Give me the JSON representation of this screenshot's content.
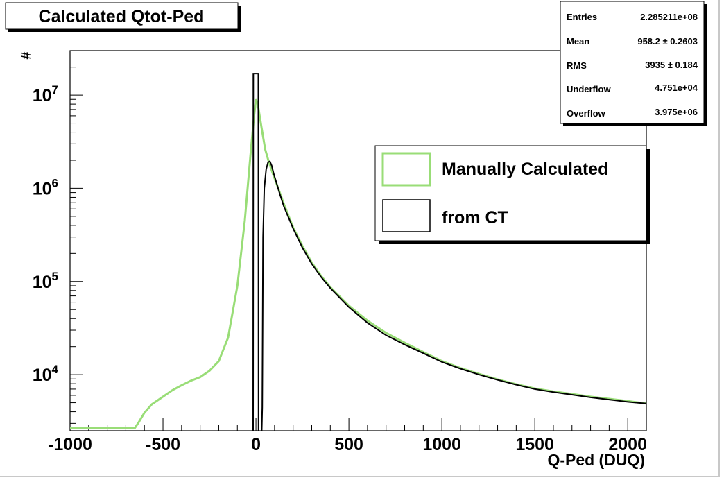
{
  "chart_data": {
    "type": "line",
    "title": "Calculated Qtot-Ped",
    "xlabel": "Q-Ped (DUQ)",
    "ylabel": "#",
    "xlim": [
      -1000,
      2100
    ],
    "ylim": [
      2500,
      30000000
    ],
    "y_scale": "log",
    "grid": false,
    "x_ticks": [
      -1000,
      -500,
      0,
      500,
      1000,
      1500,
      2000
    ],
    "x_tick_labels": [
      "-1000",
      "-500",
      "0",
      "500",
      "1000",
      "1500",
      "2000"
    ],
    "y_ticks": [
      10000,
      100000,
      1000000,
      10000000
    ],
    "y_tick_labels": [
      {
        "base": "10",
        "exp": "4"
      },
      {
        "base": "10",
        "exp": "5"
      },
      {
        "base": "10",
        "exp": "6"
      },
      {
        "base": "10",
        "exp": "7"
      }
    ],
    "legend": {
      "position": "top-right",
      "entries": [
        "Manually Calculated",
        "from CT"
      ]
    },
    "stats_box": {
      "position": "top-right",
      "rows": [
        {
          "label": "Entries",
          "value": "2.285211e+08"
        },
        {
          "label": "Mean",
          "value": "958.2 ± 0.2603"
        },
        {
          "label": "RMS",
          "value": "3935 ± 0.184"
        },
        {
          "label": "Underflow",
          "value": "4.751e+04"
        },
        {
          "label": "Overflow",
          "value": "3.975e+06"
        }
      ]
    },
    "series": [
      {
        "name": "Manually Calculated",
        "color": "#99dd77",
        "x": [
          -1000,
          -650,
          -630,
          -600,
          -560,
          -500,
          -450,
          -400,
          -350,
          -300,
          -250,
          -200,
          -150,
          -100,
          -60,
          -30,
          -10,
          0,
          10,
          30,
          50,
          70,
          90,
          120,
          150,
          200,
          250,
          300,
          350,
          400,
          500,
          600,
          700,
          800,
          900,
          1000,
          1100,
          1200,
          1300,
          1400,
          1500,
          1600,
          1700,
          1800,
          1900,
          2000,
          2100
        ],
        "y": [
          2700,
          2700,
          3100,
          3900,
          4800,
          5800,
          6800,
          7700,
          8600,
          9400,
          11000,
          14000,
          25000,
          90000,
          450000,
          2200000,
          6000000,
          9000000,
          8000000,
          4500000,
          2600000,
          1900000,
          1450000,
          1000000,
          680000,
          380000,
          240000,
          160000,
          115000,
          87000,
          55000,
          38000,
          28000,
          22000,
          17500,
          14000,
          11800,
          10200,
          8900,
          7900,
          7100,
          6600,
          6200,
          5800,
          5500,
          5200,
          4900
        ]
      },
      {
        "name": "from CT",
        "color": "#000000",
        "x": [
          -1000,
          -15,
          -14,
          0,
          13,
          14,
          20,
          30,
          34,
          38,
          45,
          55,
          65,
          75,
          85,
          95,
          110,
          130,
          150,
          200,
          250,
          300,
          350,
          400,
          500,
          600,
          700,
          800,
          900,
          1000,
          1100,
          1200,
          1300,
          1400,
          1500,
          1600,
          1700,
          1800,
          1900,
          2000,
          2100
        ],
        "y": [
          2000,
          2000,
          17000000,
          17000000,
          17000000,
          2000,
          2000,
          2000,
          4500,
          300000,
          1000000,
          1600000,
          1900000,
          1950000,
          1750000,
          1450000,
          1150000,
          850000,
          640000,
          370000,
          230000,
          155000,
          112000,
          85000,
          53000,
          36000,
          26500,
          21000,
          17000,
          13700,
          11600,
          10000,
          8800,
          7800,
          7000,
          6500,
          6100,
          5700,
          5400,
          5100,
          4900
        ]
      }
    ]
  }
}
